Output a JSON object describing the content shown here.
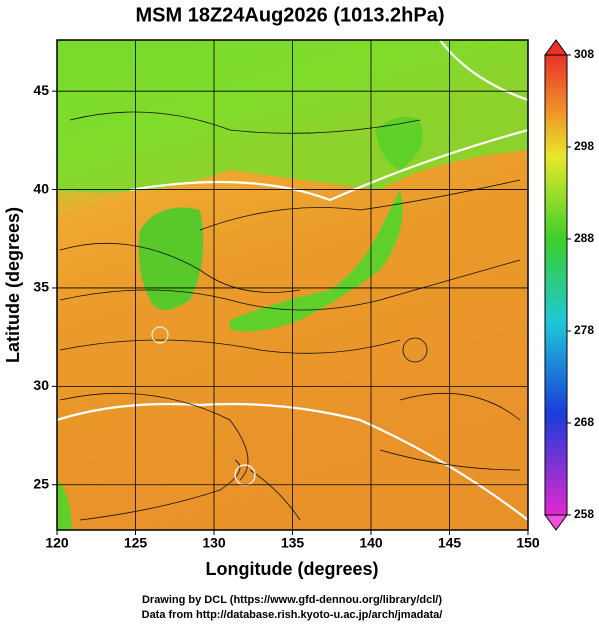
{
  "title": "MSM 18Z24Aug2026 (1013.2hPa)",
  "plot": {
    "xlabel": "Longitude (degrees)",
    "ylabel": "Latitude  (degrees)",
    "xlim": [
      120,
      150
    ],
    "ylim": [
      22.7,
      47.6
    ],
    "xticks": [
      120,
      125,
      130,
      135,
      140,
      145,
      150
    ],
    "yticks": [
      25,
      30,
      35,
      40,
      45
    ]
  },
  "colorbar": {
    "lim": [
      258,
      308
    ],
    "ticks": [
      308,
      298,
      288,
      278,
      268,
      258
    ]
  },
  "credits": [
    "Drawing by DCL (https://www.gfd-dennou.org/library/dcl/)",
    "Data from http://database.rish.kyoto-u.ac.jp/arch/jmadata/"
  ]
}
